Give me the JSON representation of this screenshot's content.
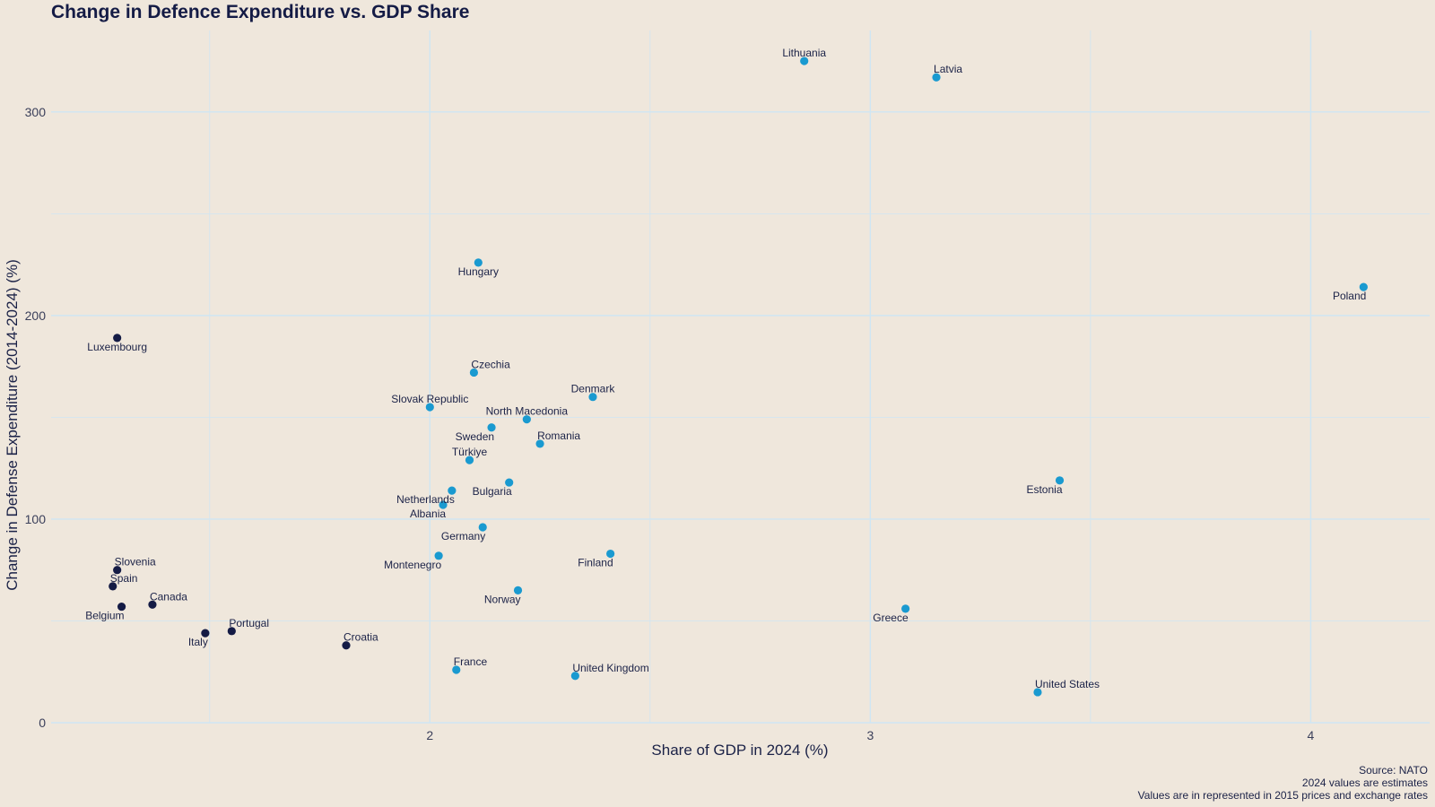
{
  "chart_data": {
    "type": "scatter",
    "title": "Change in Defence Expenditure vs. GDP Share",
    "xlabel": "Share of GDP in 2024 (%)",
    "ylabel": "Change in Defense Expenditure (2014-2024) (%)",
    "xlim": [
      1.14,
      4.27
    ],
    "ylim": [
      0,
      340
    ],
    "x_ticks": [
      "2",
      "3",
      "4"
    ],
    "y_ticks": [
      "0",
      "100",
      "200",
      "300"
    ],
    "grid": true,
    "legend": "none",
    "colors": {
      "above_2pct": "#1a9ad0",
      "below_2pct": "#141b45",
      "gridline": "#cfe6f3",
      "background": "#efe7dc"
    },
    "points": [
      {
        "label": "Lithuania",
        "x": 2.85,
        "y": 325,
        "group": "above_2pct",
        "pos": "above"
      },
      {
        "label": "Latvia",
        "x": 3.15,
        "y": 317,
        "group": "above_2pct",
        "pos": "above-right"
      },
      {
        "label": "Hungary",
        "x": 2.11,
        "y": 226,
        "group": "above_2pct",
        "pos": "below"
      },
      {
        "label": "Poland",
        "x": 4.12,
        "y": 214,
        "group": "above_2pct",
        "pos": "below-left"
      },
      {
        "label": "Luxembourg",
        "x": 1.29,
        "y": 189,
        "group": "below_2pct",
        "pos": "below"
      },
      {
        "label": "Czechia",
        "x": 2.1,
        "y": 172,
        "group": "above_2pct",
        "pos": "above-right"
      },
      {
        "label": "Denmark",
        "x": 2.37,
        "y": 160,
        "group": "above_2pct",
        "pos": "above"
      },
      {
        "label": "Slovak Republic",
        "x": 2.0,
        "y": 155,
        "group": "above_2pct",
        "pos": "above"
      },
      {
        "label": "North Macedonia",
        "x": 2.22,
        "y": 149,
        "group": "above_2pct",
        "pos": "above"
      },
      {
        "label": "Sweden",
        "x": 2.14,
        "y": 145,
        "group": "above_2pct",
        "pos": "below-left"
      },
      {
        "label": "Romania",
        "x": 2.25,
        "y": 137,
        "group": "above_2pct",
        "pos": "above-right"
      },
      {
        "label": "Türkiye",
        "x": 2.09,
        "y": 129,
        "group": "above_2pct",
        "pos": "above"
      },
      {
        "label": "Estonia",
        "x": 3.43,
        "y": 119,
        "group": "above_2pct",
        "pos": "below-left"
      },
      {
        "label": "Bulgaria",
        "x": 2.18,
        "y": 118,
        "group": "above_2pct",
        "pos": "below-left"
      },
      {
        "label": "Netherlands",
        "x": 2.05,
        "y": 114,
        "group": "above_2pct",
        "pos": "below-left"
      },
      {
        "label": "Albania",
        "x": 2.03,
        "y": 107,
        "group": "above_2pct",
        "pos": "below-left"
      },
      {
        "label": "Germany",
        "x": 2.12,
        "y": 96,
        "group": "above_2pct",
        "pos": "below-left"
      },
      {
        "label": "Finland",
        "x": 2.41,
        "y": 83,
        "group": "above_2pct",
        "pos": "below-left"
      },
      {
        "label": "Montenegro",
        "x": 2.02,
        "y": 82,
        "group": "above_2pct",
        "pos": "below-left"
      },
      {
        "label": "Norway",
        "x": 2.2,
        "y": 65,
        "group": "above_2pct",
        "pos": "below-left"
      },
      {
        "label": "Greece",
        "x": 3.08,
        "y": 56,
        "group": "above_2pct",
        "pos": "below-left"
      },
      {
        "label": "France",
        "x": 2.06,
        "y": 26,
        "group": "above_2pct",
        "pos": "above-right"
      },
      {
        "label": "United Kingdom",
        "x": 2.33,
        "y": 23,
        "group": "above_2pct",
        "pos": "above-right"
      },
      {
        "label": "United States",
        "x": 3.38,
        "y": 15,
        "group": "above_2pct",
        "pos": "above-right"
      },
      {
        "label": "Slovenia",
        "x": 1.29,
        "y": 75,
        "group": "below_2pct",
        "pos": "above-right"
      },
      {
        "label": "Spain",
        "x": 1.28,
        "y": 67,
        "group": "below_2pct",
        "pos": "above-right"
      },
      {
        "label": "Canada",
        "x": 1.37,
        "y": 58,
        "group": "below_2pct",
        "pos": "above-right"
      },
      {
        "label": "Belgium",
        "x": 1.3,
        "y": 57,
        "group": "below_2pct",
        "pos": "below-left"
      },
      {
        "label": "Portugal",
        "x": 1.55,
        "y": 45,
        "group": "below_2pct",
        "pos": "above-right"
      },
      {
        "label": "Italy",
        "x": 1.49,
        "y": 44,
        "group": "below_2pct",
        "pos": "below-left"
      },
      {
        "label": "Croatia",
        "x": 1.81,
        "y": 38,
        "group": "below_2pct",
        "pos": "above-right"
      }
    ]
  },
  "captions": {
    "source": "Source: NATO",
    "note1": "2024 values are estimates",
    "note2": "Values are in represented in 2015 prices and exchange rates"
  }
}
